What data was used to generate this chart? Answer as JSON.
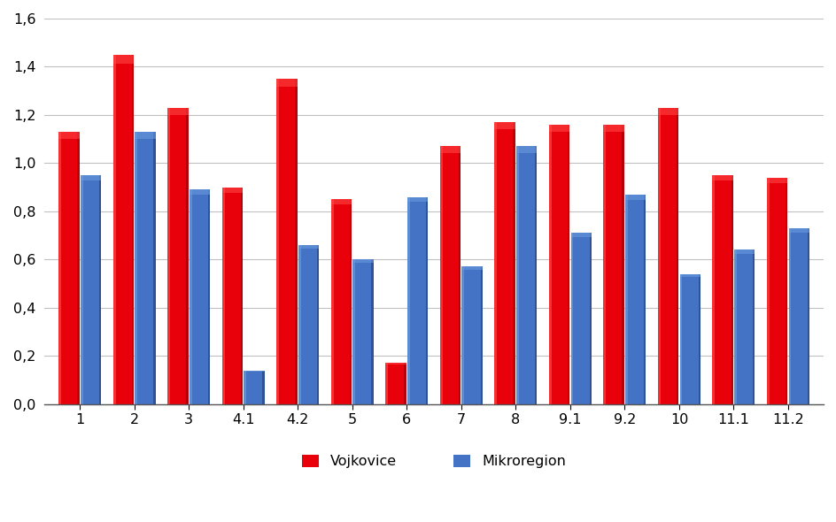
{
  "categories": [
    "1",
    "2",
    "3",
    "4.1",
    "4.2",
    "5",
    "6",
    "7",
    "8",
    "9.1",
    "9.2",
    "10",
    "11.1",
    "11.2"
  ],
  "vojkovice": [
    1.13,
    1.45,
    1.23,
    0.9,
    1.35,
    0.85,
    0.17,
    1.07,
    1.17,
    1.16,
    1.16,
    1.23,
    0.95,
    0.94
  ],
  "mikroregion": [
    0.95,
    1.13,
    0.89,
    0.14,
    0.66,
    0.6,
    0.86,
    0.57,
    1.07,
    0.71,
    0.87,
    0.54,
    0.64,
    0.73
  ],
  "vojkovice_color": "#e8000a",
  "vojkovice_color_dark": "#a80008",
  "vojkovice_color_light": "#ff4444",
  "mikroregion_color": "#4472c4",
  "mikroregion_color_dark": "#2a4a8a",
  "mikroregion_color_light": "#6699dd",
  "legend_labels": [
    "Vojkovice",
    "Mikroregion"
  ],
  "ylim": [
    0,
    1.6
  ],
  "yticks": [
    0.0,
    0.2,
    0.4,
    0.6,
    0.8,
    1.0,
    1.2,
    1.4,
    1.6
  ],
  "background_color": "#ffffff",
  "grid_color": "#c0c0c0",
  "bar_width": 0.38
}
